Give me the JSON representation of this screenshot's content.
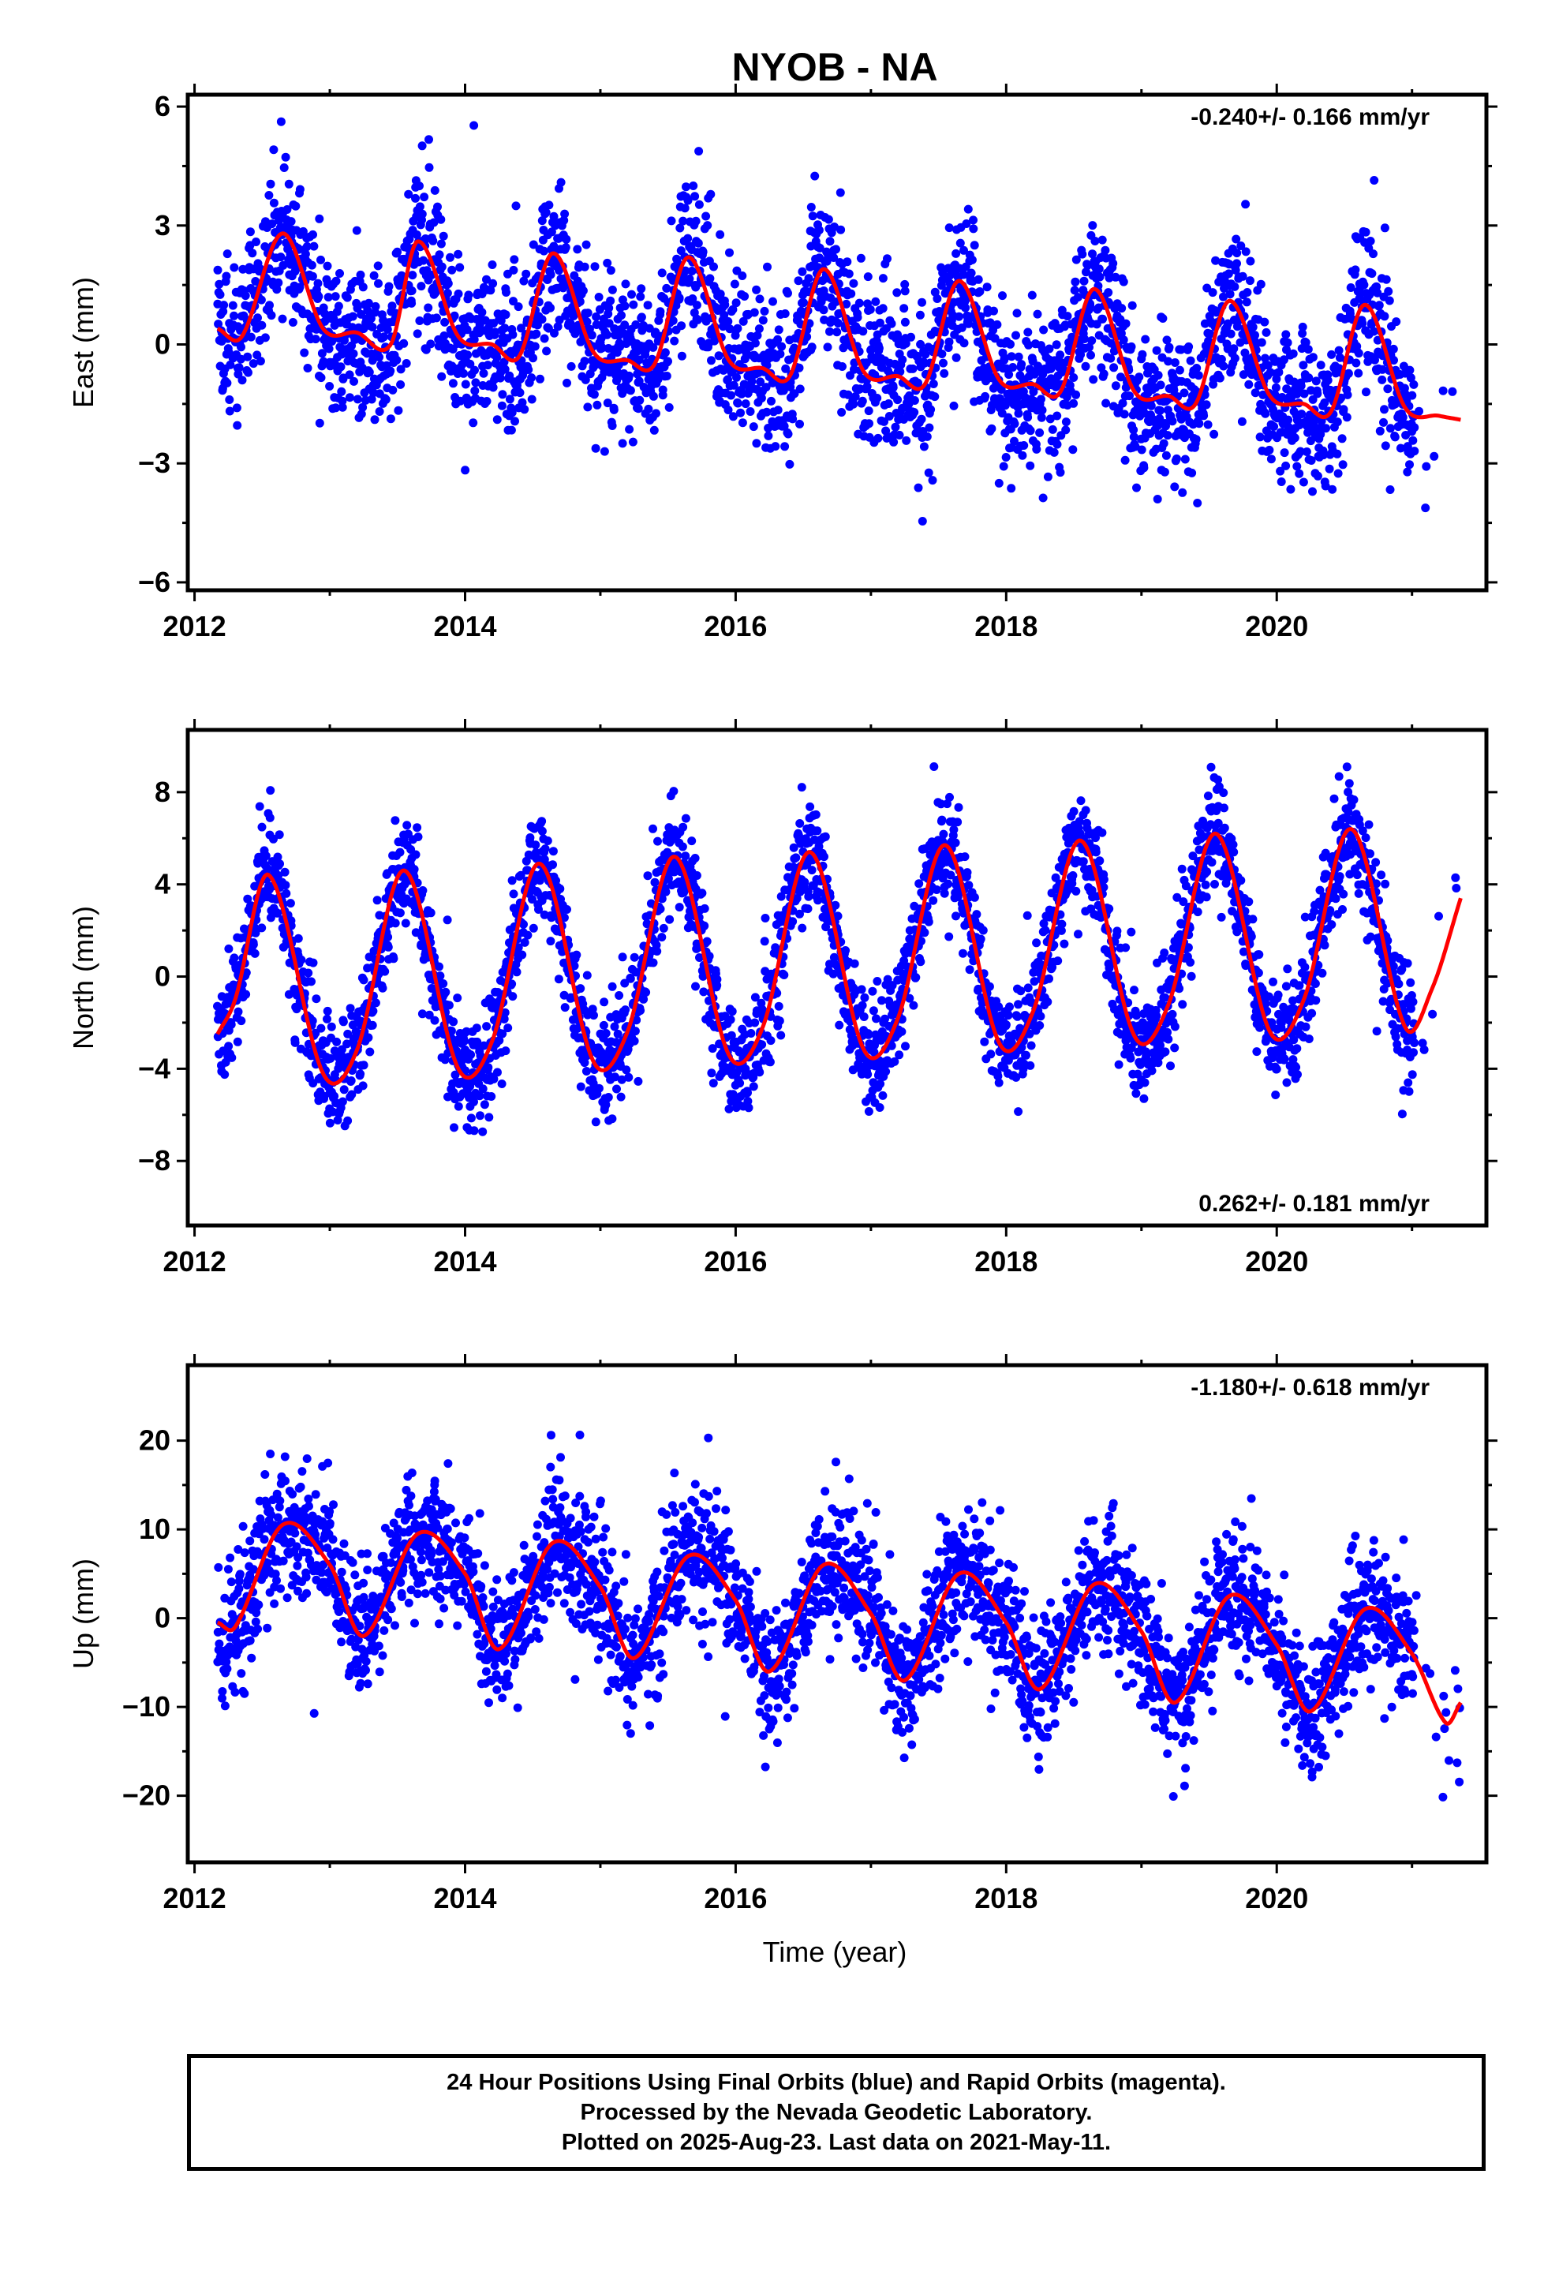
{
  "title": "NYOB - NA",
  "colors": {
    "points": "#0000ff",
    "fit": "#ff0000",
    "frame": "#000000"
  },
  "caption": [
    "24 Hour Positions Using Final Orbits (blue) and Rapid Orbits (magenta).",
    "Processed by the Nevada Geodetic Laboratory.",
    "Plotted on 2025-Aug-23. Last data on 2021-May-11."
  ],
  "chart_data": [
    {
      "type": "scatter",
      "title": "NYOB - NA",
      "ylabel": "East (mm)",
      "xlabel": "",
      "annotation": "-0.240+/- 0.166 mm/yr",
      "annotation_position": "top-right",
      "xlim": [
        2011.95,
        2021.55
      ],
      "ylim": [
        -6.2,
        6.3
      ],
      "xticks": [
        2012,
        2014,
        2016,
        2018,
        2020
      ],
      "yticks": [
        -6,
        -3,
        0,
        3,
        6
      ],
      "ytick_labels": [
        "−6",
        "−3",
        "0",
        "3",
        "6"
      ],
      "data_span": [
        2012.17,
        2021.36
      ],
      "series": [
        {
          "kind": "points",
          "mean": {
            "offset": 0.9,
            "trend": -0.24,
            "t0": 2012.2,
            "amplitude": 1.5,
            "annual_phase": 0.65,
            "semiannual": 0.4
          },
          "scatter_sigma": 1.0,
          "n": 3100
        },
        {
          "kind": "fit",
          "knots": [
            [
              2012.17,
              0.4
            ],
            [
              2012.35,
              0.2
            ],
            [
              2012.65,
              2.8
            ],
            [
              2012.95,
              0.4
            ],
            [
              2013.2,
              0.3
            ],
            [
              2013.45,
              0.0
            ],
            [
              2013.65,
              2.6
            ],
            [
              2013.95,
              0.2
            ],
            [
              2014.2,
              0.0
            ],
            [
              2014.4,
              -0.3
            ],
            [
              2014.65,
              2.3
            ],
            [
              2014.95,
              -0.2
            ],
            [
              2015.2,
              -0.4
            ],
            [
              2015.4,
              -0.5
            ],
            [
              2015.65,
              2.2
            ],
            [
              2015.95,
              -0.4
            ],
            [
              2016.2,
              -0.6
            ],
            [
              2016.4,
              -0.8
            ],
            [
              2016.65,
              1.9
            ],
            [
              2016.95,
              -0.7
            ],
            [
              2017.2,
              -0.8
            ],
            [
              2017.4,
              -1.0
            ],
            [
              2017.65,
              1.6
            ],
            [
              2017.95,
              -0.9
            ],
            [
              2018.2,
              -1.0
            ],
            [
              2018.4,
              -1.2
            ],
            [
              2018.65,
              1.4
            ],
            [
              2018.95,
              -1.2
            ],
            [
              2019.2,
              -1.3
            ],
            [
              2019.4,
              -1.5
            ],
            [
              2019.65,
              1.1
            ],
            [
              2019.95,
              -1.3
            ],
            [
              2020.2,
              -1.5
            ],
            [
              2020.4,
              -1.7
            ],
            [
              2020.65,
              1.0
            ],
            [
              2020.95,
              -1.6
            ],
            [
              2021.2,
              -1.8
            ],
            [
              2021.36,
              -1.9
            ]
          ]
        }
      ]
    },
    {
      "type": "scatter",
      "ylabel": "North (mm)",
      "xlabel": "",
      "annotation": "0.262+/- 0.181 mm/yr",
      "annotation_position": "bottom-right",
      "xlim": [
        2011.95,
        2021.55
      ],
      "ylim": [
        -10.8,
        10.7
      ],
      "xticks": [
        2012,
        2014,
        2016,
        2018,
        2020
      ],
      "yticks": [
        -8,
        -4,
        0,
        4,
        8
      ],
      "ytick_labels": [
        "−8",
        "−4",
        "0",
        "4",
        "8"
      ],
      "data_span": [
        2012.17,
        2021.36
      ],
      "series": [
        {
          "kind": "points",
          "mean": {
            "offset": 0.0,
            "trend": 0.26,
            "t0": 2016.7,
            "amplitude": 4.3,
            "annual_phase": 0.5,
            "semiannual": 0.0
          },
          "scatter_sigma": 1.2,
          "n": 3100
        },
        {
          "kind": "fit",
          "knots": [
            [
              2012.17,
              -2.5
            ],
            [
              2012.3,
              -1.0
            ],
            [
              2012.55,
              4.4
            ],
            [
              2012.95,
              -4.2
            ],
            [
              2013.2,
              -3.2
            ],
            [
              2013.55,
              4.6
            ],
            [
              2013.95,
              -4.0
            ],
            [
              2014.2,
              -2.8
            ],
            [
              2014.55,
              4.9
            ],
            [
              2014.95,
              -3.7
            ],
            [
              2015.2,
              -2.4
            ],
            [
              2015.55,
              5.2
            ],
            [
              2015.95,
              -3.4
            ],
            [
              2016.2,
              -2.2
            ],
            [
              2016.55,
              5.4
            ],
            [
              2016.95,
              -3.2
            ],
            [
              2017.2,
              -1.8
            ],
            [
              2017.55,
              5.7
            ],
            [
              2017.95,
              -2.9
            ],
            [
              2018.2,
              -1.5
            ],
            [
              2018.55,
              5.9
            ],
            [
              2018.95,
              -2.6
            ],
            [
              2019.2,
              -1.2
            ],
            [
              2019.55,
              6.2
            ],
            [
              2019.95,
              -2.4
            ],
            [
              2020.2,
              -1.0
            ],
            [
              2020.55,
              6.4
            ],
            [
              2020.95,
              -2.2
            ],
            [
              2021.15,
              -0.5
            ],
            [
              2021.36,
              3.4
            ]
          ]
        }
      ]
    },
    {
      "type": "scatter",
      "ylabel": "Up (mm)",
      "xlabel": "Time (year)",
      "annotation": "-1.180+/- 0.618 mm/yr",
      "annotation_position": "top-right",
      "xlim": [
        2011.95,
        2021.55
      ],
      "ylim": [
        -27.5,
        28.5
      ],
      "xticks": [
        2012,
        2014,
        2016,
        2018,
        2020
      ],
      "yticks": [
        -20,
        -10,
        0,
        10,
        20
      ],
      "ytick_labels": [
        "−20",
        "−10",
        "0",
        "10",
        "20"
      ],
      "data_span": [
        2012.17,
        2021.36
      ],
      "series": [
        {
          "kind": "points",
          "mean": {
            "offset": 4.0,
            "trend": -1.18,
            "t0": 2012.2,
            "amplitude": 6.5,
            "annual_phase": 0.67,
            "semiannual": 0.0
          },
          "scatter_sigma": 3.8,
          "n": 3100
        },
        {
          "kind": "fit",
          "knots": [
            [
              2012.17,
              -0.5
            ],
            [
              2012.3,
              -1.0
            ],
            [
              2012.65,
              10.5
            ],
            [
              2013.0,
              6.0
            ],
            [
              2013.25,
              -2.0
            ],
            [
              2013.65,
              9.5
            ],
            [
              2014.0,
              5.0
            ],
            [
              2014.25,
              -3.5
            ],
            [
              2014.65,
              8.5
            ],
            [
              2015.0,
              3.5
            ],
            [
              2015.25,
              -4.5
            ],
            [
              2015.65,
              7.0
            ],
            [
              2016.0,
              2.0
            ],
            [
              2016.25,
              -6.0
            ],
            [
              2016.65,
              6.0
            ],
            [
              2017.0,
              0.5
            ],
            [
              2017.25,
              -7.0
            ],
            [
              2017.65,
              5.0
            ],
            [
              2018.0,
              -0.5
            ],
            [
              2018.25,
              -8.0
            ],
            [
              2018.65,
              3.8
            ],
            [
              2019.0,
              -1.5
            ],
            [
              2019.25,
              -9.5
            ],
            [
              2019.65,
              2.5
            ],
            [
              2020.0,
              -3.0
            ],
            [
              2020.25,
              -10.5
            ],
            [
              2020.65,
              1.0
            ],
            [
              2021.0,
              -4.0
            ],
            [
              2021.25,
              -11.8
            ],
            [
              2021.36,
              -9.5
            ]
          ]
        }
      ]
    }
  ]
}
